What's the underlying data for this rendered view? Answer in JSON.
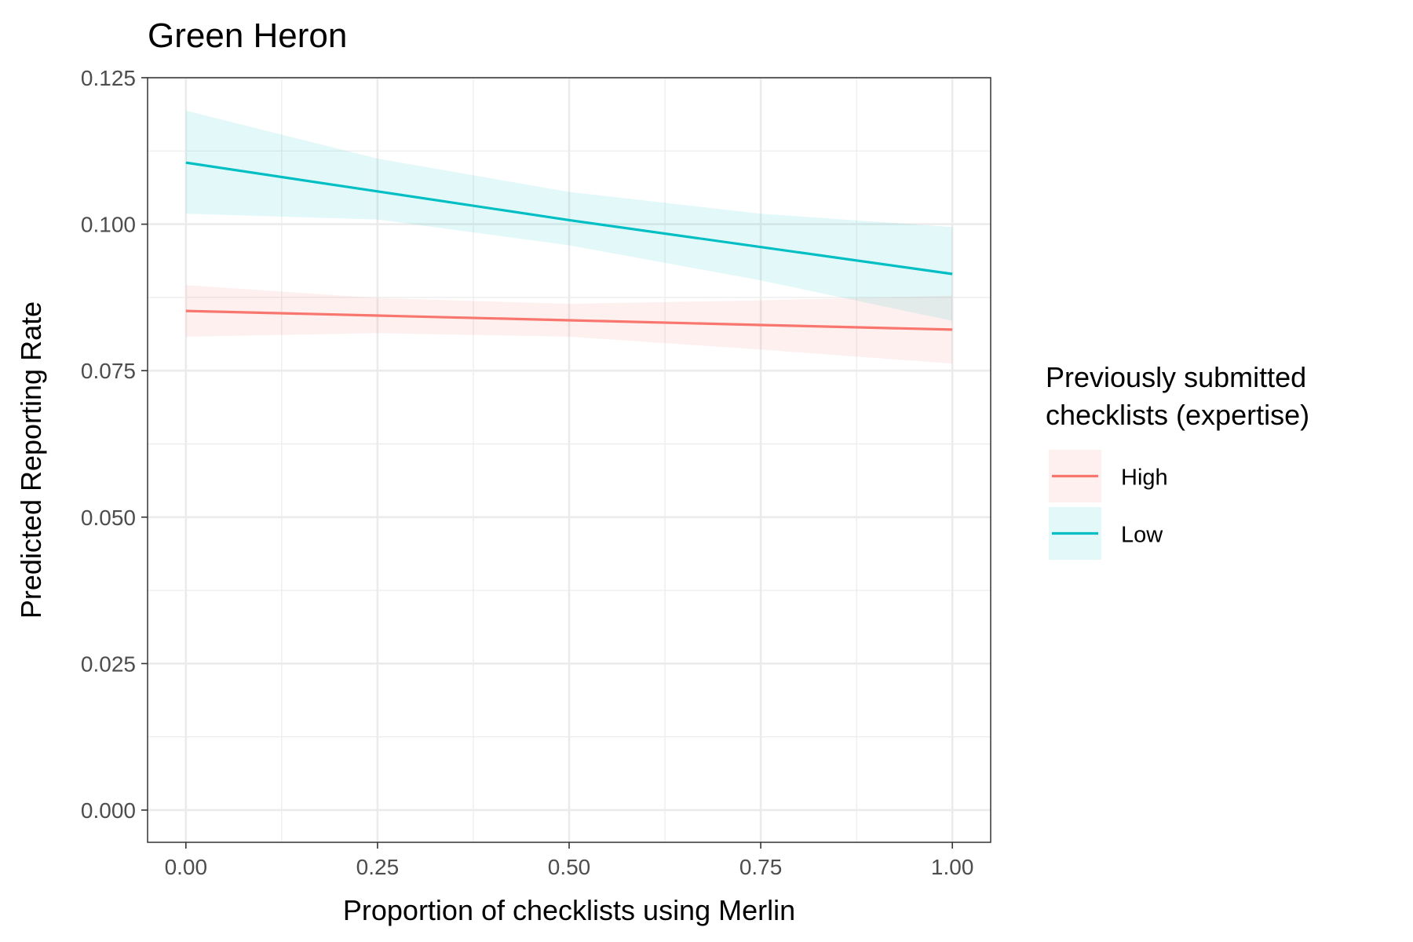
{
  "chart_data": {
    "type": "line",
    "title": "Green Heron",
    "xlabel": "Proportion of checklists using Merlin",
    "ylabel": "Predicted Reporting Rate",
    "xlim": [
      -0.05,
      1.05
    ],
    "ylim": [
      -0.0055,
      0.125
    ],
    "x_ticks": [
      0,
      0.25,
      0.5,
      0.75,
      1
    ],
    "x_tick_labels": [
      "0.00",
      "0.25",
      "0.50",
      "0.75",
      "1.00"
    ],
    "y_ticks": [
      0,
      0.025,
      0.05,
      0.075,
      0.1,
      0.125
    ],
    "y_tick_labels": [
      "0.000",
      "0.025",
      "0.050",
      "0.075",
      "0.100",
      "0.125"
    ],
    "grid": true,
    "legend": {
      "title": "Previously submitted checklists (expertise)",
      "title_lines": [
        "Previously submitted",
        "checklists (expertise)"
      ],
      "position": "right"
    },
    "series": [
      {
        "name": "High",
        "color": "#F8766D",
        "x": [
          0,
          0.25,
          0.5,
          0.75,
          1
        ],
        "y": [
          0.0852,
          0.0844,
          0.0836,
          0.0828,
          0.082
        ],
        "lower": [
          0.0808,
          0.0814,
          0.0808,
          0.0786,
          0.0762
        ],
        "upper": [
          0.0896,
          0.0874,
          0.0864,
          0.087,
          0.0878
        ]
      },
      {
        "name": "Low",
        "color": "#00BFC4",
        "x": [
          0,
          0.25,
          0.5,
          0.75,
          1
        ],
        "y": [
          0.1105,
          0.1056,
          0.1007,
          0.0961,
          0.0915
        ],
        "lower": [
          0.1018,
          0.1008,
          0.0964,
          0.0904,
          0.0835
        ],
        "upper": [
          0.1194,
          0.1112,
          0.1055,
          0.1018,
          0.0995
        ]
      }
    ]
  }
}
